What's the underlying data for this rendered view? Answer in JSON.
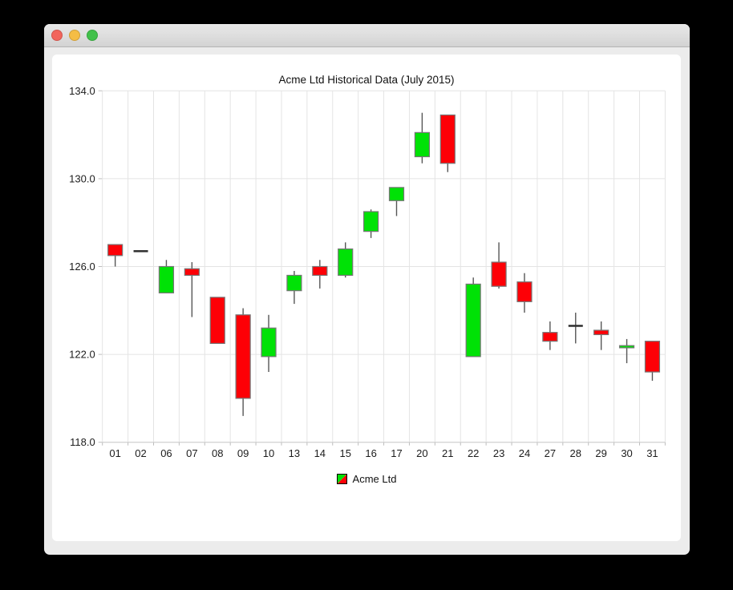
{
  "window": {
    "controls": {
      "close": "close",
      "minimize": "minimize",
      "zoom": "zoom"
    }
  },
  "chart_data": {
    "type": "candlestick",
    "title": "Acme Ltd Historical Data (July 2015)",
    "xlabel": "",
    "ylabel": "",
    "ylim": [
      118.0,
      134.0
    ],
    "yticks": [
      134.0,
      130.0,
      126.0,
      122.0,
      118.0
    ],
    "ytick_labels": [
      "134.0",
      "130.0",
      "126.0",
      "122.0",
      "118.0"
    ],
    "grid": true,
    "legend_position": "bottom",
    "categories": [
      "01",
      "02",
      "06",
      "07",
      "08",
      "09",
      "10",
      "13",
      "14",
      "15",
      "16",
      "17",
      "20",
      "21",
      "22",
      "23",
      "24",
      "27",
      "28",
      "29",
      "30",
      "31"
    ],
    "series": [
      {
        "name": "Acme Ltd",
        "ohlc_format": [
          "open",
          "high",
          "low",
          "close"
        ],
        "ohlc": [
          [
            127.0,
            127.0,
            126.0,
            126.5
          ],
          [
            126.7,
            126.7,
            126.7,
            126.7
          ],
          [
            124.8,
            126.3,
            124.8,
            126.0
          ],
          [
            125.9,
            126.2,
            123.7,
            125.6
          ],
          [
            124.6,
            124.6,
            122.5,
            122.5
          ],
          [
            123.8,
            124.1,
            119.2,
            120.0
          ],
          [
            121.9,
            123.8,
            121.2,
            123.2
          ],
          [
            124.9,
            125.8,
            124.3,
            125.6
          ],
          [
            126.0,
            126.3,
            125.0,
            125.6
          ],
          [
            125.6,
            127.1,
            125.5,
            126.8
          ],
          [
            127.6,
            128.6,
            127.3,
            128.5
          ],
          [
            129.0,
            129.6,
            128.3,
            129.6
          ],
          [
            131.0,
            133.0,
            130.7,
            132.1
          ],
          [
            132.9,
            132.9,
            130.3,
            130.7
          ],
          [
            121.9,
            125.5,
            121.9,
            125.2
          ],
          [
            126.2,
            127.1,
            125.0,
            125.1
          ],
          [
            125.3,
            125.7,
            123.9,
            124.4
          ],
          [
            123.0,
            123.5,
            122.2,
            122.6
          ],
          [
            123.3,
            123.9,
            122.5,
            123.3
          ],
          [
            123.1,
            123.5,
            122.2,
            122.9
          ],
          [
            122.3,
            122.7,
            121.6,
            122.4
          ],
          [
            122.6,
            122.6,
            120.8,
            121.2
          ]
        ]
      }
    ],
    "colors": {
      "up": "#00e206",
      "down": "#fd0006",
      "doji": "#2e2e2e",
      "wick": "#565656",
      "body_border": "#767676",
      "grid": "#e4e4e4",
      "axis": "#c6c6c6",
      "tick": "#bdbdbd",
      "text": "#1c1c1c"
    }
  }
}
